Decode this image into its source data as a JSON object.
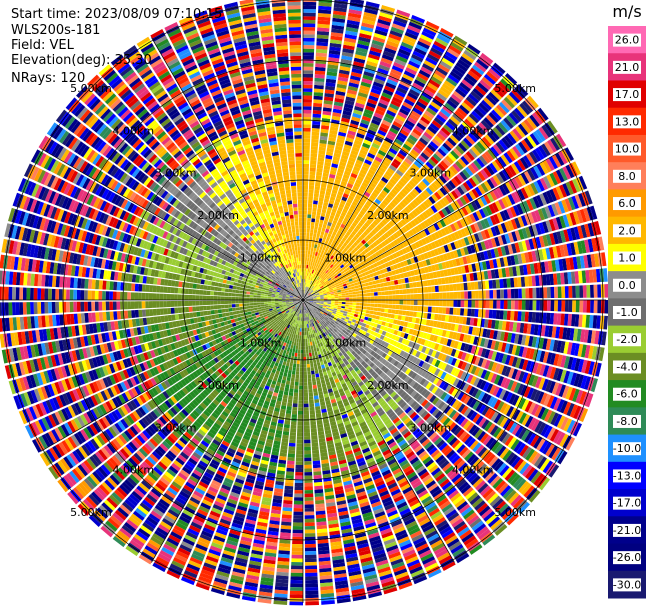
{
  "header": {
    "start_time": "Start time: 2023/08/09 07:10:15",
    "site": "WLS200s-181",
    "field": "Field: VEL",
    "elevation": "Elevation(deg): 35.30",
    "nrays": "NRays: 120"
  },
  "chart_data": {
    "type": "heatmap",
    "subtype": "radar-ppi",
    "n_rays": 120,
    "range_rings_km": [
      1.0,
      2.0,
      3.0,
      4.0,
      5.0
    ],
    "ring_labels": [
      "1.00km",
      "2.00km",
      "3.00km",
      "4.00km",
      "5.00km"
    ],
    "colorbar": {
      "unit": "m/s",
      "ticks": [
        "26.0",
        "21.0",
        "17.0",
        "13.0",
        "10.0",
        "8.0",
        "6.0",
        "2.0",
        "1.0",
        "0.0",
        "-1.0",
        "-2.0",
        "-4.0",
        "-6.0",
        "-8.0",
        "-10.0",
        "-13.0",
        "-17.0",
        "-21.0",
        "-26.0",
        "-30.0"
      ],
      "colors": [
        "#ff69b4",
        "#e8337a",
        "#e00000",
        "#ff2a00",
        "#ff5a2a",
        "#ff7f5a",
        "#ff9a00",
        "#ffb800",
        "#ffff00",
        "#8c8c8c",
        "#6e6e6e",
        "#9acd32",
        "#6b8e23",
        "#228b22",
        "#2e8b57",
        "#1e90ff",
        "#0000ff",
        "#0000cd",
        "#00008b",
        "#000080",
        "#191970"
      ]
    }
  }
}
